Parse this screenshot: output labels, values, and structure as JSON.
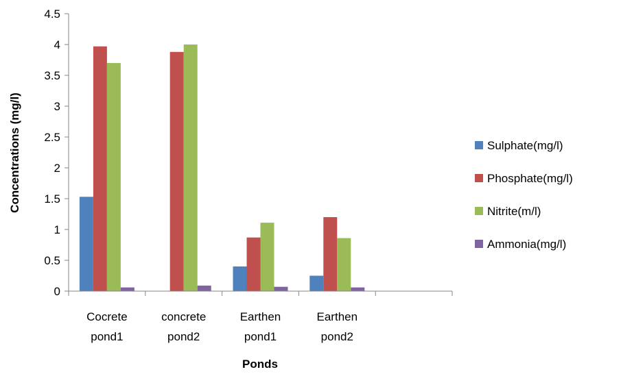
{
  "chart_data": {
    "type": "bar",
    "title": "",
    "xlabel": "Ponds",
    "ylabel": "Concentrations (mg/l)",
    "ylim": [
      0,
      4.5
    ],
    "yticks": [
      "0",
      "0.5",
      "1",
      "1.5",
      "2",
      "2.5",
      "3",
      "3.5",
      "4",
      "4.5"
    ],
    "categories": [
      [
        "Cocrete",
        "pond1"
      ],
      [
        "concrete",
        "pond2"
      ],
      [
        "Earthen",
        "pond1"
      ],
      [
        "Earthen",
        "pond2"
      ],
      [
        "",
        ""
      ]
    ],
    "series": [
      {
        "name": "Sulphate(mg/l)",
        "color": "#4f81bd",
        "values": [
          1.53,
          0,
          0.4,
          0.25,
          null
        ]
      },
      {
        "name": "Phosphate(mg/l)",
        "color": "#c0504d",
        "values": [
          3.97,
          3.88,
          0.87,
          1.2,
          null
        ]
      },
      {
        "name": "Nitrite(m/l)",
        "color": "#9bbb59",
        "values": [
          3.7,
          4.0,
          1.11,
          0.86,
          null
        ]
      },
      {
        "name": "Ammonia(mg/l)",
        "color": "#8064a2",
        "values": [
          0.06,
          0.09,
          0.07,
          0.06,
          null
        ]
      }
    ],
    "grid": false,
    "legend": "right"
  }
}
